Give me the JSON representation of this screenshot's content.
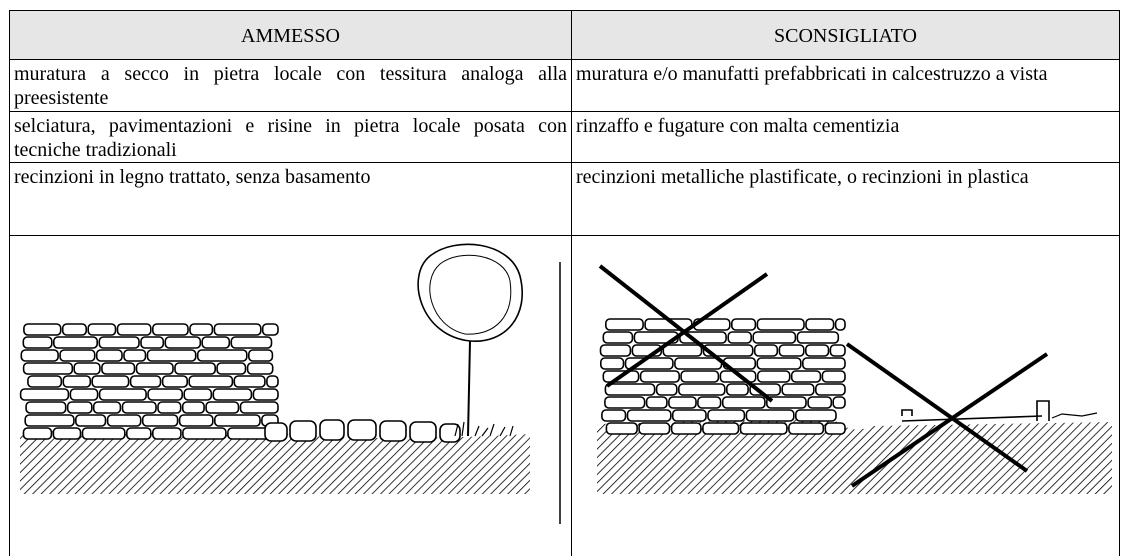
{
  "table": {
    "header": [
      "AMMESSO",
      "SCONSIGLIATO"
    ],
    "rows": [
      [
        "muratura a secco in pietra locale con tessitura analoga alla preesistente",
        "muratura e/o manufatti prefabbricati in calcestruzzo a vista"
      ],
      [
        "selciatura, pavimentazioni e risine in pietra locale posata con tecniche tradizionali",
        "rinzaffo e fugature con malta cementizia"
      ],
      [
        "recinzioni in legno trattato, senza basamento",
        "recinzioni metalliche plastificate, o recinzioni in plastica"
      ]
    ]
  }
}
